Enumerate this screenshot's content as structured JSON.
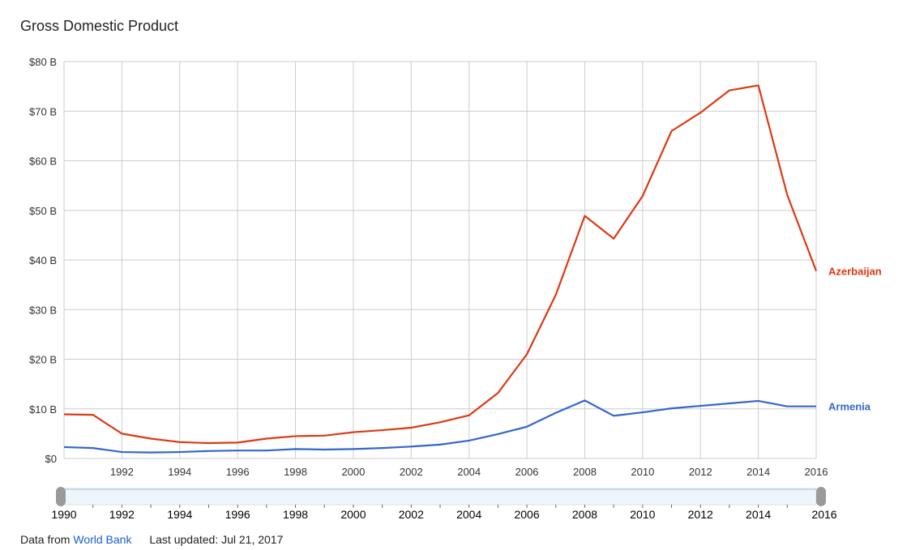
{
  "chart_data": {
    "type": "line",
    "title": "Gross Domestic Product",
    "x": [
      1990,
      1991,
      1992,
      1993,
      1994,
      1995,
      1996,
      1997,
      1998,
      1999,
      2000,
      2001,
      2002,
      2003,
      2004,
      2005,
      2006,
      2007,
      2008,
      2009,
      2010,
      2011,
      2012,
      2013,
      2014,
      2015,
      2016
    ],
    "x_tick_labels": [
      "1992",
      "1994",
      "1996",
      "1998",
      "2000",
      "2002",
      "2004",
      "2006",
      "2008",
      "2010",
      "2012",
      "2014",
      "2016"
    ],
    "y_tick_labels": [
      "$0",
      "$10 B",
      "$20 B",
      "$30 B",
      "$40 B",
      "$50 B",
      "$60 B",
      "$70 B",
      "$80 B"
    ],
    "ylim": [
      0,
      80
    ],
    "xlim": [
      1990,
      2016
    ],
    "grid": true,
    "series": [
      {
        "name": "Azerbaijan",
        "color": "#dc3912",
        "values": [
          8.9,
          8.8,
          5.0,
          4.0,
          3.3,
          3.1,
          3.2,
          4.0,
          4.5,
          4.6,
          5.3,
          5.7,
          6.2,
          7.3,
          8.7,
          13.2,
          21.0,
          33.0,
          48.9,
          44.3,
          52.9,
          66.0,
          69.7,
          74.2,
          75.2,
          53.1,
          37.8
        ]
      },
      {
        "name": "Armenia",
        "color": "#3366cc",
        "values": [
          2.3,
          2.1,
          1.3,
          1.2,
          1.3,
          1.5,
          1.6,
          1.6,
          1.9,
          1.8,
          1.9,
          2.1,
          2.4,
          2.8,
          3.6,
          4.9,
          6.4,
          9.2,
          11.7,
          8.6,
          9.3,
          10.1,
          10.6,
          11.1,
          11.6,
          10.5,
          10.5
        ]
      }
    ],
    "range_selector": {
      "start_label": "1990",
      "end_label": "2016",
      "tick_labels": [
        "1992",
        "1994",
        "1996",
        "1998",
        "2000",
        "2002",
        "2004",
        "2006",
        "2008",
        "2010",
        "2012",
        "2014"
      ]
    }
  },
  "footer": {
    "source_prefix": "Data from",
    "source_link": "World Bank",
    "last_updated": "Last updated: Jul 21, 2017"
  }
}
